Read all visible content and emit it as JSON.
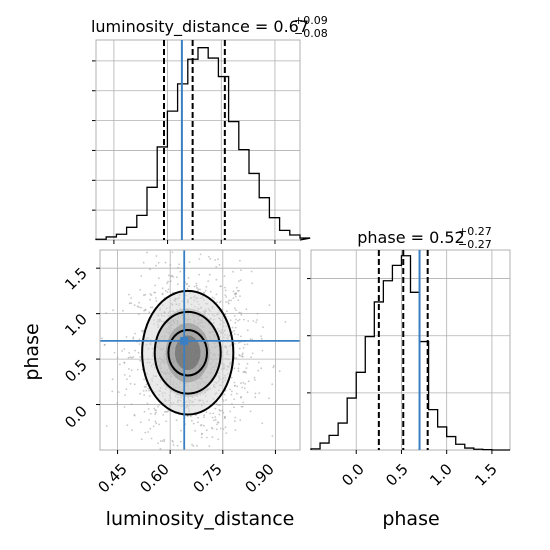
{
  "chart_data": {
    "type": "corner",
    "params": [
      "luminosity_distance",
      "phase"
    ],
    "truths": {
      "luminosity_distance": 0.64,
      "phase": 0.7
    },
    "titles": {
      "luminosity_distance": {
        "label": "luminosity_distance = 0.67",
        "sup": "+0.09",
        "sub": "−0.08"
      },
      "phase": {
        "label": "phase = 0.52",
        "sup": "+0.27",
        "sub": "−0.27"
      }
    },
    "xlabels": [
      "luminosity_distance",
      "phase"
    ],
    "ylabel": "phase",
    "ticks": {
      "luminosity_distance": [
        "0.45",
        "0.60",
        "0.75",
        "0.90"
      ],
      "phase_x": [
        "0.0",
        "0.5",
        "1.0",
        "1.5"
      ],
      "phase_y": [
        "0.0",
        "0.5",
        "1.0",
        "1.5"
      ]
    },
    "ranges": {
      "luminosity_distance": [
        0.4,
        0.97
      ],
      "phase": [
        -0.5,
        1.7
      ]
    },
    "quantiles": {
      "luminosity_distance": [
        0.59,
        0.67,
        0.76
      ],
      "phase": [
        0.25,
        0.52,
        0.79
      ]
    },
    "hist_luminosity_distance": {
      "edges_start": 0.4,
      "bin_width": 0.0285,
      "counts": [
        0.2,
        0.8,
        1.5,
        3.3,
        6.4,
        13.7,
        24.2,
        33.5,
        40.6,
        47.0,
        50.0,
        47.3,
        42.5,
        30.8,
        23.5,
        17.3,
        11.0,
        5.8,
        2.5,
        1.3,
        0.5
      ]
    },
    "hist_phase": {
      "edges_start": -0.5,
      "bin_width": 0.1,
      "counts": [
        0.3,
        1.8,
        3.8,
        7.0,
        13.5,
        20.2,
        29.5,
        38.5,
        44.0,
        48.0,
        50.5,
        41.0,
        28.2,
        10.5,
        6.0,
        3.5,
        1.5,
        0.5,
        0.2,
        0.1,
        0.0
      ]
    },
    "contour_levels": [
      {
        "cx": 0.65,
        "cy": 0.57,
        "rx": 0.13,
        "ry": 0.68
      },
      {
        "cx": 0.65,
        "cy": 0.57,
        "rx": 0.094,
        "ry": 0.45
      },
      {
        "cx": 0.65,
        "cy": 0.57,
        "rx": 0.055,
        "ry": 0.25
      }
    ],
    "scatter_center": {
      "x": 0.66,
      "y": 0.55,
      "sx": 0.085,
      "sy": 0.45
    },
    "grid": true
  },
  "colors": {
    "truth": "#3a7fc4",
    "hist": "#000000",
    "grid": "#b0b0b0",
    "axis": "#000000",
    "scatter": "#9a9a9a"
  }
}
